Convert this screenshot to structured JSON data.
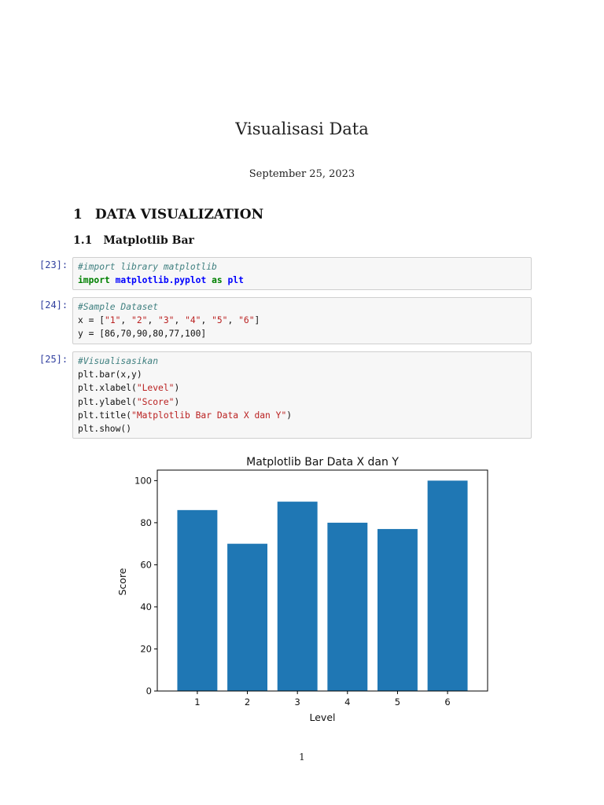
{
  "document": {
    "title": "Visualisasi Data",
    "date": "September 25, 2023",
    "section": {
      "number": "1",
      "title": "DATA VISUALIZATION"
    },
    "subsection": {
      "number": "1.1",
      "title": "Matplotlib Bar"
    },
    "page_number": "1"
  },
  "cells": [
    {
      "prompt": "[23]:",
      "lines": [
        [
          {
            "t": "cm",
            "v": "#import library matplotlib"
          }
        ],
        [
          {
            "t": "kw",
            "v": "import"
          },
          {
            "t": "op",
            "v": " "
          },
          {
            "t": "nn",
            "v": "matplotlib.pyplot"
          },
          {
            "t": "op",
            "v": " "
          },
          {
            "t": "kw",
            "v": "as"
          },
          {
            "t": "op",
            "v": " "
          },
          {
            "t": "nn",
            "v": "plt"
          }
        ]
      ]
    },
    {
      "prompt": "[24]:",
      "lines": [
        [
          {
            "t": "cm",
            "v": "#Sample Dataset"
          }
        ],
        [
          {
            "t": "op",
            "v": "x = ["
          },
          {
            "t": "st",
            "v": "\"1\""
          },
          {
            "t": "op",
            "v": ", "
          },
          {
            "t": "st",
            "v": "\"2\""
          },
          {
            "t": "op",
            "v": ", "
          },
          {
            "t": "st",
            "v": "\"3\""
          },
          {
            "t": "op",
            "v": ", "
          },
          {
            "t": "st",
            "v": "\"4\""
          },
          {
            "t": "op",
            "v": ", "
          },
          {
            "t": "st",
            "v": "\"5\""
          },
          {
            "t": "op",
            "v": ", "
          },
          {
            "t": "st",
            "v": "\"6\""
          },
          {
            "t": "op",
            "v": "]"
          }
        ],
        [
          {
            "t": "op",
            "v": "y = [86,70,90,80,77,100]"
          }
        ]
      ]
    },
    {
      "prompt": "[25]:",
      "lines": [
        [
          {
            "t": "cm",
            "v": "#Visualisasikan"
          }
        ],
        [
          {
            "t": "op",
            "v": "plt.bar(x,y)"
          }
        ],
        [
          {
            "t": "op",
            "v": "plt.xlabel("
          },
          {
            "t": "st",
            "v": "\"Level\""
          },
          {
            "t": "op",
            "v": ")"
          }
        ],
        [
          {
            "t": "op",
            "v": "plt.ylabel("
          },
          {
            "t": "st",
            "v": "\"Score\""
          },
          {
            "t": "op",
            "v": ")"
          }
        ],
        [
          {
            "t": "op",
            "v": "plt.title("
          },
          {
            "t": "st",
            "v": "\"Matplotlib Bar Data X dan Y\""
          },
          {
            "t": "op",
            "v": ")"
          }
        ],
        [
          {
            "t": "op",
            "v": "plt.show()"
          }
        ]
      ]
    }
  ],
  "chart_data": {
    "type": "bar",
    "title": "Matplotlib Bar Data X dan Y",
    "xlabel": "Level",
    "ylabel": "Score",
    "categories": [
      "1",
      "2",
      "3",
      "4",
      "5",
      "6"
    ],
    "values": [
      86,
      70,
      90,
      80,
      77,
      100
    ],
    "ylim": [
      0,
      105
    ],
    "yticks": [
      0,
      20,
      40,
      60,
      80,
      100
    ],
    "grid": false,
    "bar_color": "#1f77b4"
  }
}
